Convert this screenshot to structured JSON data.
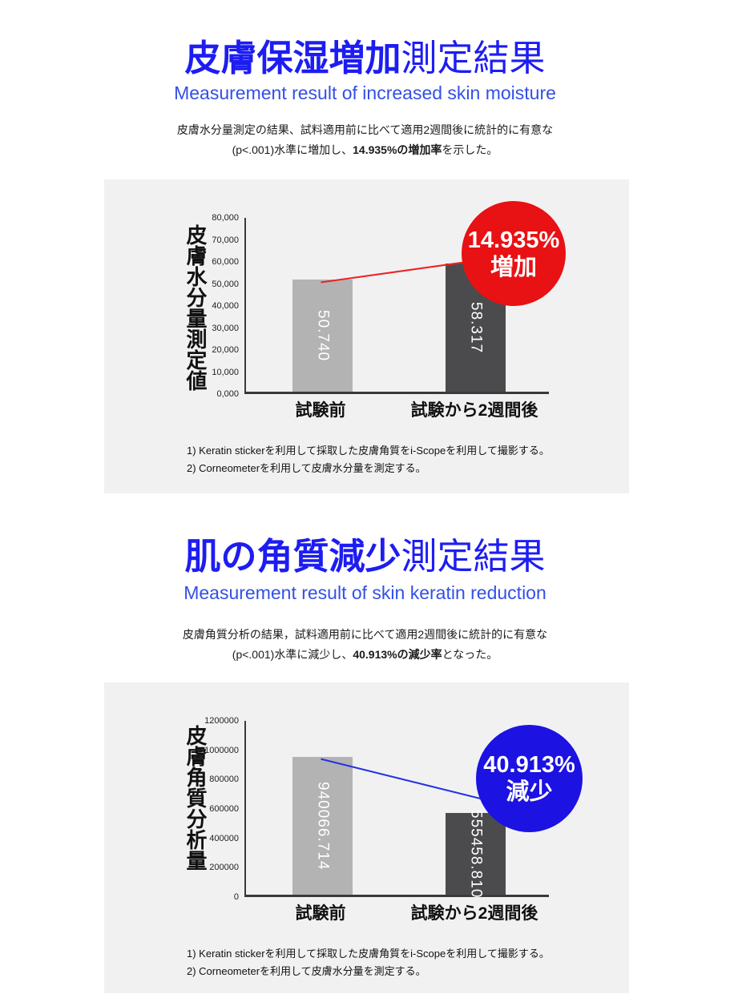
{
  "page": {
    "background": "#ffffff"
  },
  "sections": [
    {
      "title_strong": "皮膚保湿増加",
      "title_rest": "測定結果",
      "subtitle": "Measurement result of increased skin moisture",
      "desc_line1": "皮膚水分量測定の結果、試料適用前に比べて適用2週間後に統計的に有意な",
      "desc_line2_pre": "(p<.001)水準に増加し、",
      "desc_line2_bold": "14.935%の増加率",
      "desc_line2_post": "を示した。",
      "badge": {
        "percent": "14.935%",
        "label": "増加",
        "color": "#e81113"
      },
      "footnote1": "1) Keratin stickerを利用して採取した皮膚角質をi-Scopeを利用して撮影する。",
      "footnote2": "2) Corneometerを利用して皮膚水分量を測定する。"
    },
    {
      "title_strong": "肌の角質減少",
      "title_rest": "測定結果",
      "subtitle": "Measurement result of skin keratin reduction",
      "desc_line1": "皮膚角質分析の結果，試料適用前に比べて適用2週間後に統計的に有意な",
      "desc_line2_pre": "(p<.001)水準に減少し、",
      "desc_line2_bold": "40.913%の減少率",
      "desc_line2_post": "となった。",
      "badge": {
        "percent": "40.913%",
        "label": "減少",
        "color": "#1c12e2"
      },
      "footnote1": "1) Keratin stickerを利用して採取した皮膚角質をi-Scopeを利用して撮影する。",
      "footnote2": "2) Corneometerを利用して皮膚水分量を測定する。"
    }
  ],
  "chart_data": [
    {
      "type": "bar",
      "title": "皮膚水分量測定値",
      "categories": [
        "試験前",
        "試験から2週間後"
      ],
      "values": [
        50740,
        58317
      ],
      "value_labels": [
        "50.740",
        "58.317"
      ],
      "ylabel": "皮膚水分量測定値",
      "yticks": [
        "80,000",
        "70,000",
        "60,000",
        "50,000",
        "40,000",
        "30,000",
        "20,000",
        "10,000",
        "0,000"
      ],
      "ylim": [
        0,
        80000
      ],
      "xlabel": "",
      "grid": false,
      "legend": "none",
      "bar_colors": [
        "#b3b3b4",
        "#4b4b4d"
      ],
      "trend_line_color": "#ee2222",
      "annotation": "14.935% 増加"
    },
    {
      "type": "bar",
      "title": "皮膚角質分析量",
      "categories": [
        "試験前",
        "試験から2週間後"
      ],
      "values": [
        940066.714,
        555458.81
      ],
      "value_labels": [
        "940066.714",
        "555458.810"
      ],
      "ylabel": "皮膚角質分析量",
      "yticks": [
        "1200000",
        "1000000",
        "800000",
        "600000",
        "400000",
        "200000",
        "0"
      ],
      "ylim": [
        0,
        1200000
      ],
      "xlabel": "",
      "grid": false,
      "legend": "none",
      "bar_colors": [
        "#b3b3b4",
        "#4b4b4d"
      ],
      "trend_line_color": "#2533e0",
      "annotation": "40.913% 減少"
    }
  ]
}
